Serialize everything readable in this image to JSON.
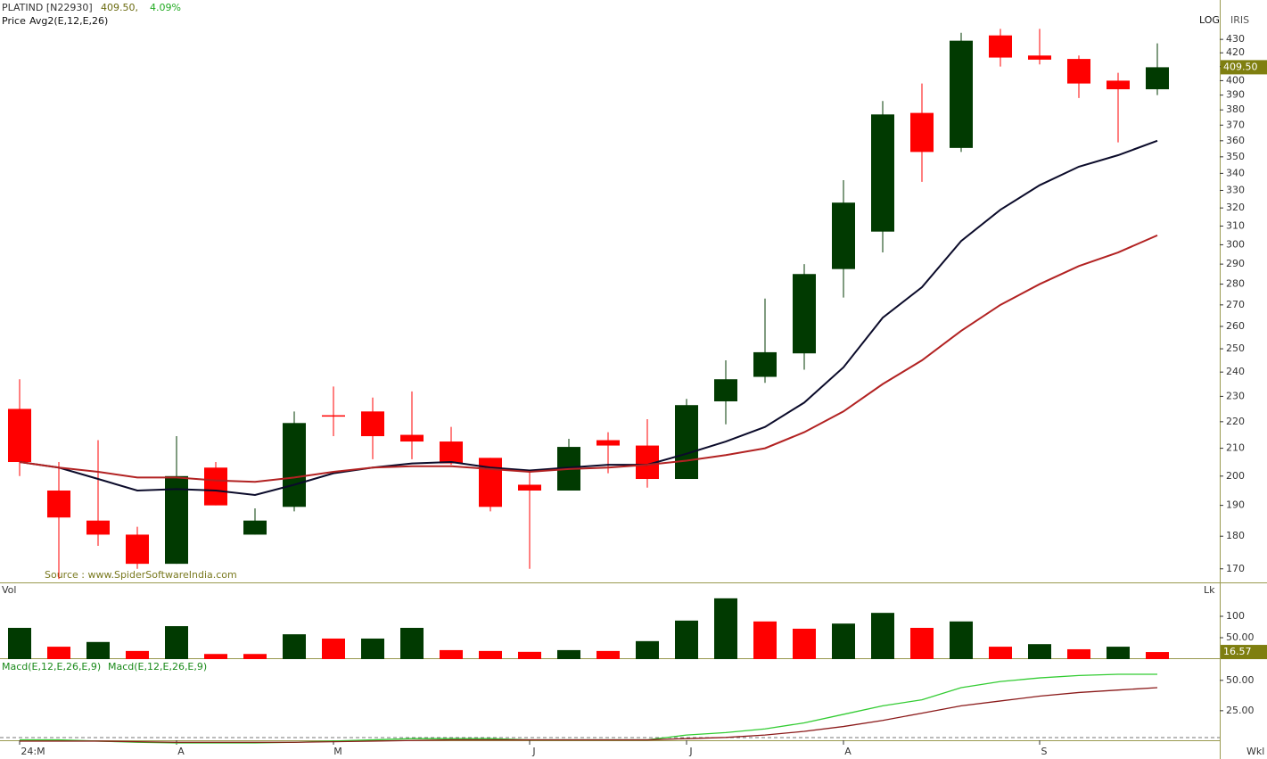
{
  "chart_data": [
    {
      "type": "candlestick",
      "title": "PLATIND [N22930]",
      "price_text": "409.50,",
      "change_text": "4.09%",
      "indicator_label": "Price",
      "overlay_label": "Avg2(E,12,E,26)",
      "scale_label": "LOG",
      "app_label": "IRIS",
      "source": "Source : www.SpiderSoftwareIndia.com",
      "period_label": "Wkl",
      "log_scale": true,
      "up_color": "#013a01",
      "down_color": "#ff0000",
      "categories": [
        "24:M",
        null,
        null,
        null,
        "A",
        null,
        null,
        null,
        "M",
        null,
        null,
        null,
        null,
        "J",
        null,
        null,
        null,
        "J",
        null,
        null,
        null,
        "A",
        null,
        null,
        null,
        null,
        "S",
        null,
        null,
        null
      ],
      "open": [
        225,
        195,
        185,
        180.5,
        171.5,
        203,
        180.5,
        189.5,
        222.5,
        224,
        215,
        212.5,
        206.5,
        197,
        195,
        213,
        211,
        199,
        228,
        238,
        248,
        287.5,
        307,
        378,
        355.5,
        433,
        418,
        415.5,
        400,
        394
      ],
      "high": [
        237,
        205,
        213,
        183,
        214.5,
        205,
        189,
        224,
        234,
        229.5,
        232,
        218,
        206.5,
        202,
        213.5,
        216,
        221,
        229,
        245,
        273,
        290,
        336,
        386,
        398,
        435,
        438,
        438,
        418,
        405.5,
        427
      ],
      "low": [
        200,
        167,
        177,
        170,
        171.5,
        190,
        180.5,
        188,
        214.5,
        206,
        206,
        204,
        188,
        170,
        195,
        201,
        196,
        199,
        219,
        235.5,
        241,
        273.5,
        296,
        335,
        353,
        410,
        411.5,
        388,
        359,
        390
      ],
      "close": [
        205,
        186,
        180.5,
        171.5,
        200,
        190,
        185,
        219.5,
        222,
        214.5,
        212.5,
        204.5,
        189.5,
        195,
        210.5,
        211,
        199,
        226.5,
        237,
        248.5,
        285,
        323,
        377,
        353,
        429,
        416.5,
        415,
        398,
        394,
        409.5
      ],
      "last_label": "409.50",
      "series": [
        {
          "color": "#0b0b2a",
          "values": [
            205,
            203,
            199,
            195,
            195.5,
            195,
            193.5,
            197,
            201,
            203,
            204.5,
            205,
            203,
            202,
            203,
            204,
            204,
            208,
            212.5,
            218,
            227.5,
            242,
            264,
            278.5,
            302,
            319,
            333,
            344,
            351,
            360
          ]
        },
        {
          "color": "#b22222",
          "values": [
            205,
            203,
            201.5,
            199.5,
            199.5,
            198.5,
            198,
            199.5,
            201.5,
            203,
            203.5,
            203.5,
            202.5,
            201.5,
            202.5,
            203,
            204,
            205.5,
            207.5,
            210,
            216,
            224,
            235,
            245,
            258,
            270,
            280,
            289,
            296,
            305
          ]
        }
      ],
      "ylim": [
        166,
        441
      ],
      "yticks": [
        170,
        180,
        190,
        200,
        210,
        220,
        230,
        240,
        250,
        260,
        270,
        280,
        290,
        300,
        310,
        320,
        330,
        340,
        350,
        360,
        370,
        380,
        390,
        400,
        410,
        420,
        430
      ]
    },
    {
      "type": "bar",
      "title": "Vol",
      "unit_label": "Lk",
      "values": [
        73,
        29,
        40,
        19,
        77,
        12,
        12,
        58,
        48,
        48,
        73,
        21,
        19,
        17,
        21,
        19,
        42,
        90,
        142,
        88,
        71,
        83,
        108,
        73,
        88,
        29,
        35,
        23,
        29,
        16.57
      ],
      "colors": [
        "#013a01",
        "#ff0000",
        "#013a01",
        "#ff0000",
        "#013a01",
        "#ff0000",
        "#ff0000",
        "#013a01",
        "#ff0000",
        "#013a01",
        "#013a01",
        "#ff0000",
        "#ff0000",
        "#ff0000",
        "#013a01",
        "#ff0000",
        "#013a01",
        "#013a01",
        "#013a01",
        "#ff0000",
        "#ff0000",
        "#013a01",
        "#013a01",
        "#ff0000",
        "#013a01",
        "#ff0000",
        "#013a01",
        "#ff0000",
        "#013a01",
        "#ff0000"
      ],
      "last_label": "16.57",
      "ylim": [
        0,
        175
      ],
      "yticks": [
        {
          "value": 50,
          "label": "50.00"
        },
        100
      ]
    },
    {
      "type": "line",
      "series": [
        {
          "name": "Macd(E,12,E,26,E,9)",
          "color": "#33cc33",
          "values": [
            1,
            1,
            0,
            -1,
            -1.5,
            -1.5,
            -1.5,
            -1,
            0,
            1,
            2,
            2,
            2,
            1,
            1,
            1,
            1,
            5,
            7,
            10,
            15,
            22,
            29,
            34,
            44,
            49,
            52,
            54,
            55,
            55
          ]
        },
        {
          "name": "Macd(E,12,E,26,E,9)",
          "color": "#8b1a1a",
          "values": [
            0,
            0,
            0,
            -0.5,
            -1,
            -1,
            -1,
            -1,
            -0.5,
            0,
            0.5,
            1,
            1,
            1,
            1,
            1,
            1,
            2,
            3,
            5,
            8,
            12,
            17,
            23,
            29,
            33,
            37,
            40,
            42,
            44
          ]
        }
      ],
      "ylim": [
        -3,
        66
      ],
      "yticks": [
        {
          "value": 25,
          "label": "25.00"
        },
        {
          "value": 50,
          "label": "50.00"
        }
      ]
    }
  ]
}
